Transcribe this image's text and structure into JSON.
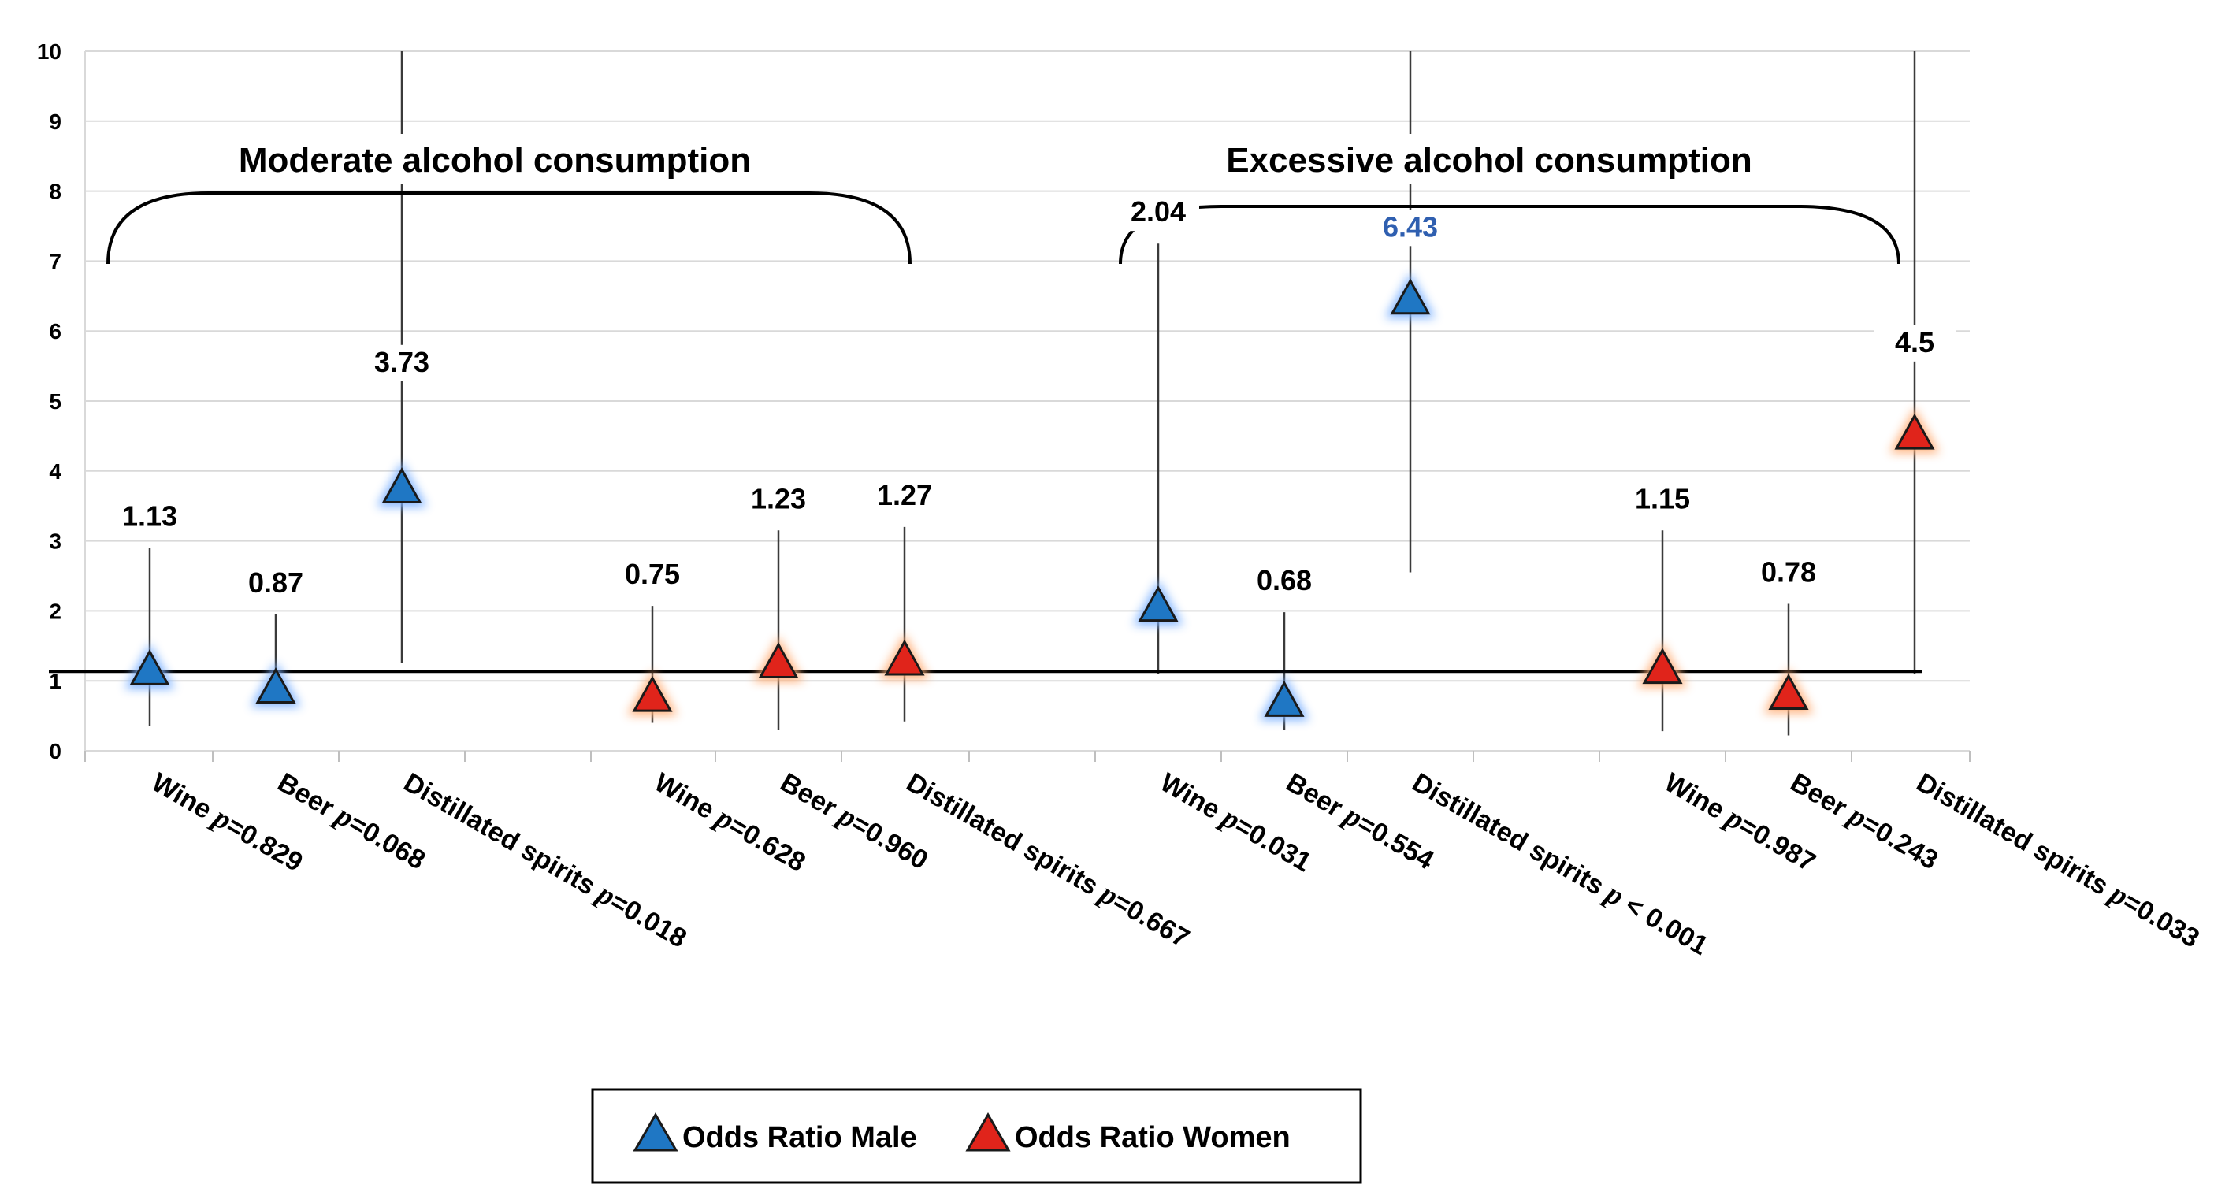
{
  "chart_data": {
    "type": "scatter",
    "subtype": "odds-ratio-forest",
    "ylim": [
      0,
      10
    ],
    "y_ticks": [
      "0",
      "1",
      "2",
      "3",
      "4",
      "5",
      "6",
      "7",
      "8",
      "9",
      "10"
    ],
    "reference_line": 1,
    "groups": [
      {
        "title": "Moderate alcohol consumption",
        "from": 0,
        "to": 5
      },
      {
        "title": "Excessive alcohol consumption",
        "from": 6,
        "to": 11
      }
    ],
    "series": [
      {
        "name": "Odds Ratio Male",
        "color": "#1f77c4",
        "glow": "#7fb3ff"
      },
      {
        "name": "Odds Ratio Women",
        "color": "#e0241b",
        "glow": "#ffb07a"
      }
    ],
    "points": [
      {
        "category": "Wine",
        "p": "p",
        "pvalue": "=0.829",
        "series": 0,
        "or": 1.13,
        "label": "1.13",
        "ci": [
          0.35,
          2.9
        ]
      },
      {
        "category": "Beer",
        "p": "p",
        "pvalue": "=0.068",
        "series": 0,
        "or": 0.87,
        "label": "0.87",
        "ci": [
          0.85,
          1.95
        ]
      },
      {
        "category": "Distillated spirits",
        "p": "p",
        "pvalue": "=0.018",
        "series": 0,
        "or": 3.73,
        "label": "3.73",
        "ci": [
          1.25,
          10
        ]
      },
      {
        "category": "Wine",
        "p": "p",
        "pvalue": "=0.628",
        "series": 1,
        "or": 0.75,
        "label": "0.75",
        "ci": [
          0.4,
          2.07
        ]
      },
      {
        "category": "Beer",
        "p": "p",
        "pvalue": "=0.960",
        "series": 1,
        "or": 1.23,
        "label": "1.23",
        "ci": [
          0.3,
          3.15
        ]
      },
      {
        "category": "Distillated spirits",
        "p": "p",
        "pvalue": "=0.667",
        "series": 1,
        "or": 1.27,
        "label": "1.27",
        "ci": [
          0.42,
          3.2
        ]
      },
      {
        "category": "Wine",
        "p": "p",
        "pvalue": "=0.031",
        "series": 0,
        "or": 2.04,
        "label": "2.04",
        "ci": [
          1.1,
          7.25
        ]
      },
      {
        "category": "Beer",
        "p": "p",
        "pvalue": "=0.554",
        "series": 0,
        "or": 0.68,
        "label": "0.68",
        "ci": [
          0.3,
          1.98
        ]
      },
      {
        "category": "Distillated spirits",
        "p": "p",
        "pvalue": " < 0.001",
        "series": 0,
        "or": 6.43,
        "label": "6.43",
        "ci": [
          2.55,
          10
        ],
        "label_color": "#2f5fb0"
      },
      {
        "category": "Wine",
        "p": "p",
        "pvalue": "=0.987",
        "series": 1,
        "or": 1.15,
        "label": "1.15",
        "ci": [
          0.28,
          3.15
        ]
      },
      {
        "category": "Beer",
        "p": "p",
        "pvalue": "=0.243",
        "series": 1,
        "or": 0.78,
        "label": "0.78",
        "ci": [
          0.22,
          2.1
        ]
      },
      {
        "category": "Distillated spirits",
        "p": "p",
        "pvalue": "=0.033",
        "series": 1,
        "or": 4.5,
        "label": "4.5",
        "ci": [
          1.1,
          10
        ]
      }
    ],
    "legend": {
      "position": "bottom-center"
    }
  }
}
